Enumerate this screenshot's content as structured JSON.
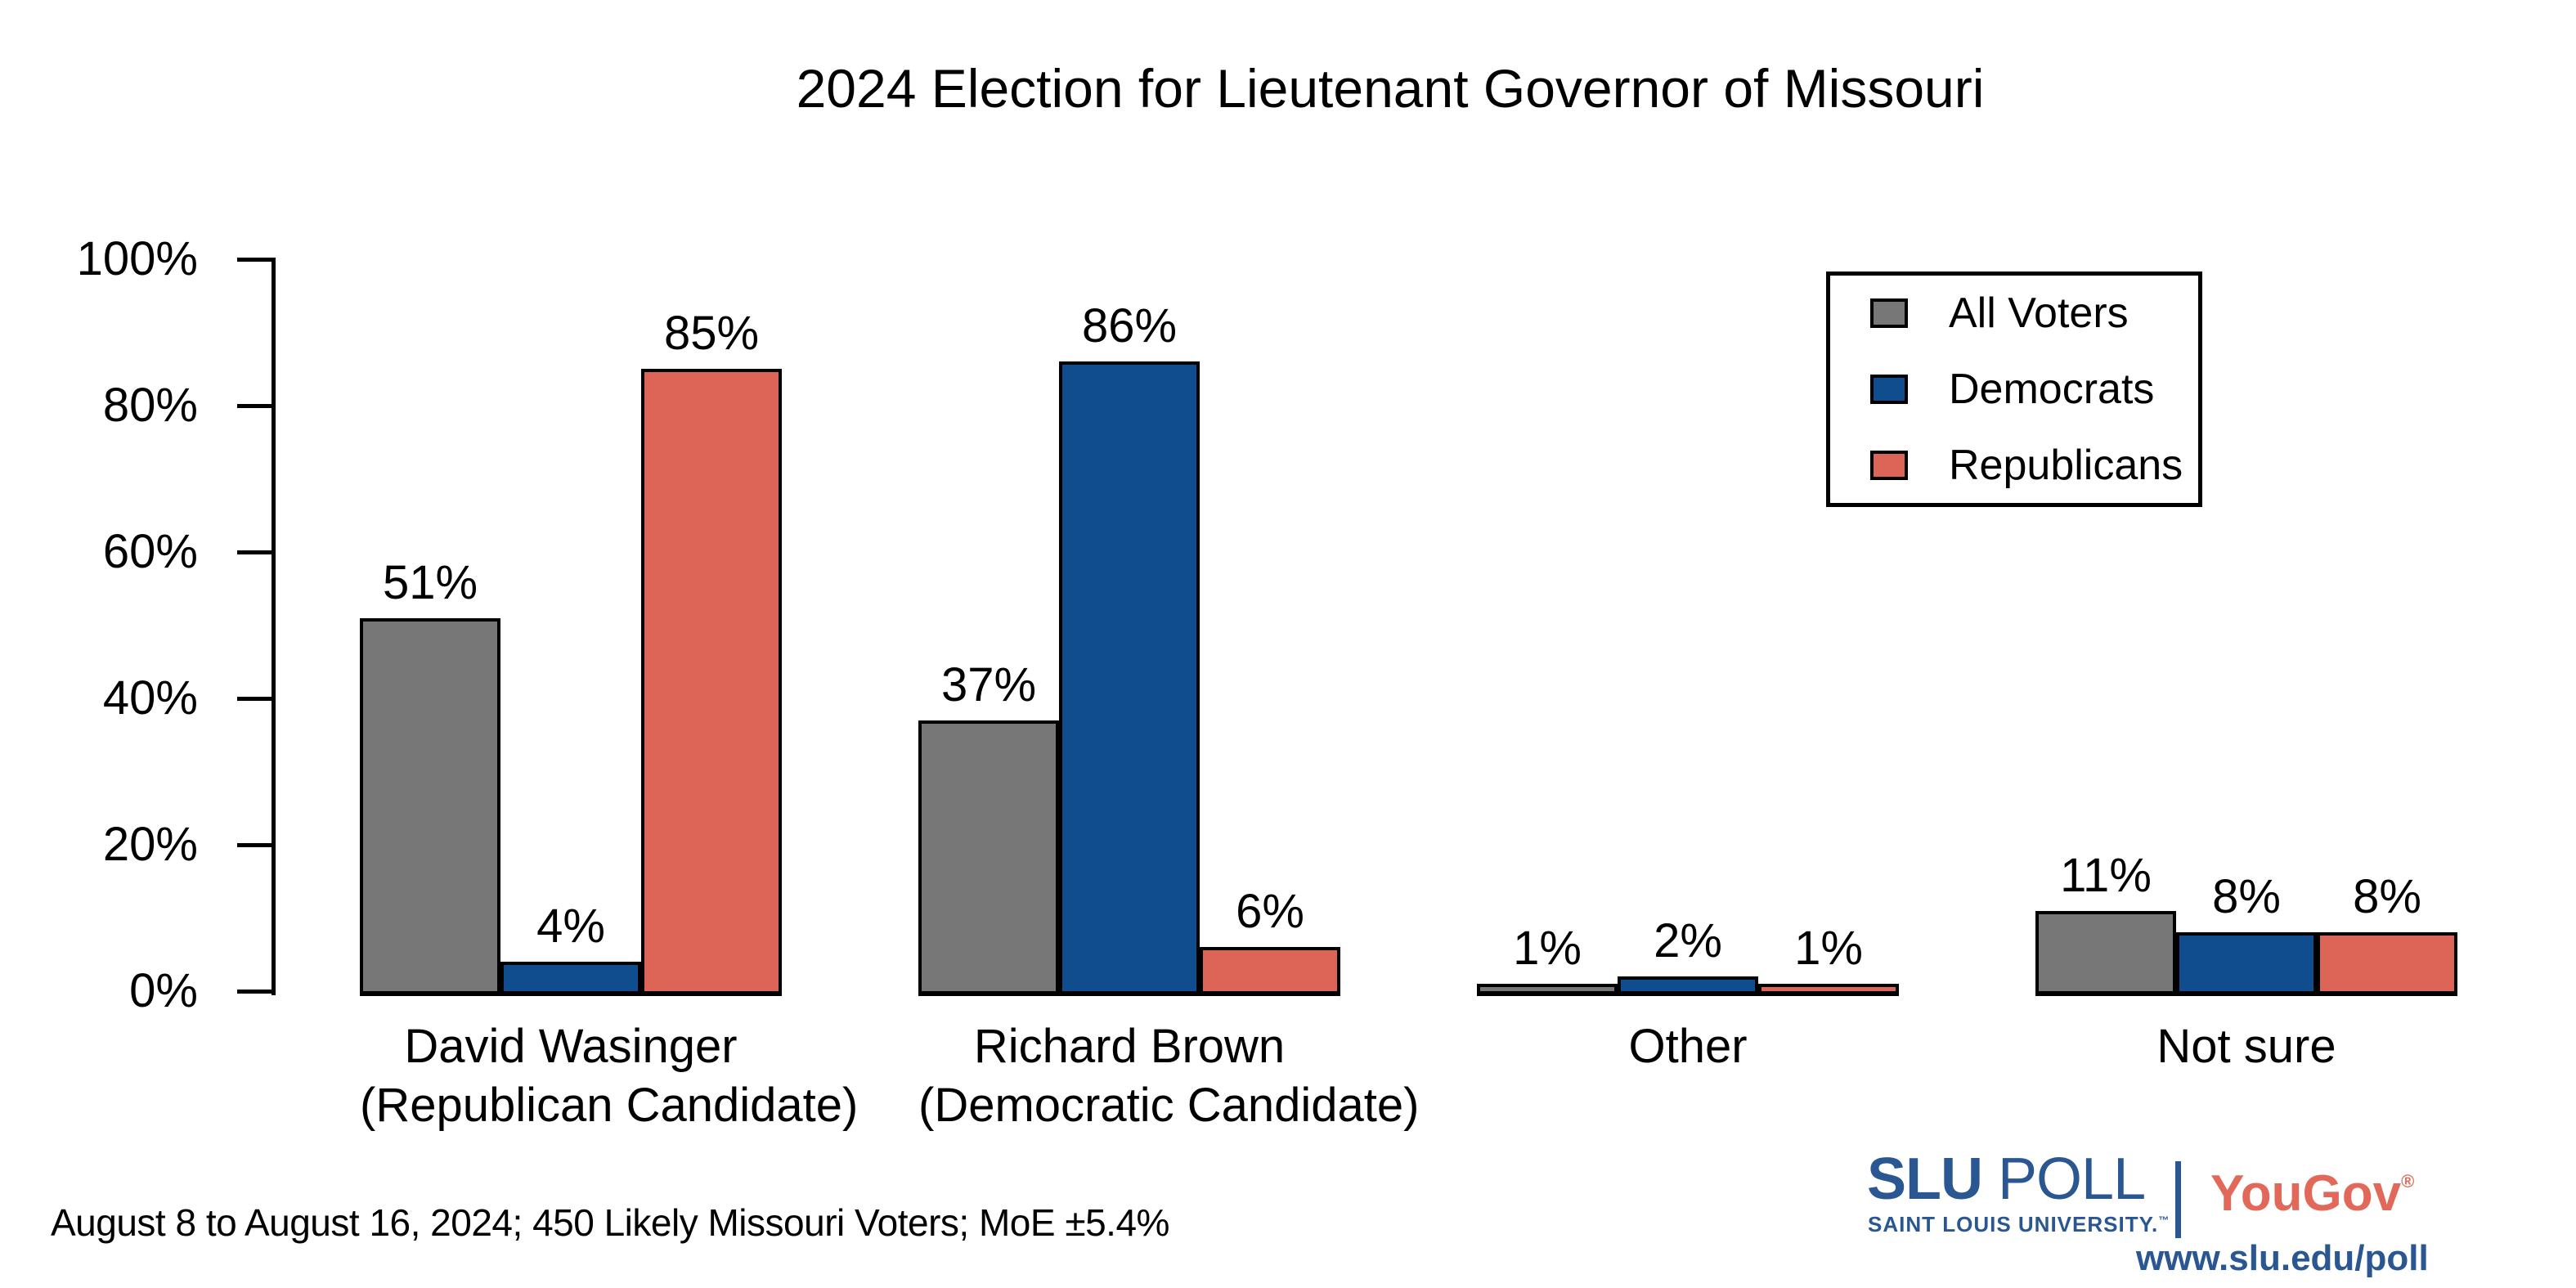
{
  "chart_data": {
    "type": "bar",
    "title": "2024 Election for Lieutenant Governor of Missouri",
    "categories": [
      "David Wasinger (Republican Candidate)",
      "Richard Brown (Democratic Candidate)",
      "Other",
      "Not sure"
    ],
    "categories_lines": [
      [
        "David Wasinger",
        "(Republican Candidate)"
      ],
      [
        "Richard Brown",
        "(Democratic Candidate)"
      ],
      [
        "Other",
        ""
      ],
      [
        "Not sure",
        ""
      ]
    ],
    "series": [
      {
        "name": "All Voters",
        "color": "#777777",
        "values": [
          51,
          37,
          1,
          11
        ],
        "labels": [
          "51%",
          "37%",
          "1%",
          "11%"
        ]
      },
      {
        "name": "Democrats",
        "color": "#0F4D8F",
        "values": [
          4,
          86,
          2,
          8
        ],
        "labels": [
          "4%",
          "86%",
          "2%",
          "8%"
        ]
      },
      {
        "name": "Republicans",
        "color": "#DC6557",
        "values": [
          85,
          6,
          1,
          8
        ],
        "labels": [
          "85%",
          "6%",
          "1%",
          "8%"
        ]
      }
    ],
    "ylim": [
      0,
      100
    ],
    "yticks": [
      "100%",
      "80%",
      "60%",
      "40%",
      "20%",
      "0%"
    ],
    "grid": false,
    "legend_position": "top-right"
  },
  "footer": {
    "note": "August 8 to August 16, 2024; 450 Likely Missouri Voters; MoE ±5.4%"
  },
  "branding": {
    "slu_title_strong": "SLU",
    "slu_title_light": " POLL",
    "slu_subtitle": "SAINT LOUIS UNIVERSITY.",
    "trademark": "™",
    "yougov": "YouGov",
    "registered": "®",
    "url": "www.slu.edu/poll",
    "slu_blue": "#2A5791",
    "yougov_red": "#E2695A"
  }
}
